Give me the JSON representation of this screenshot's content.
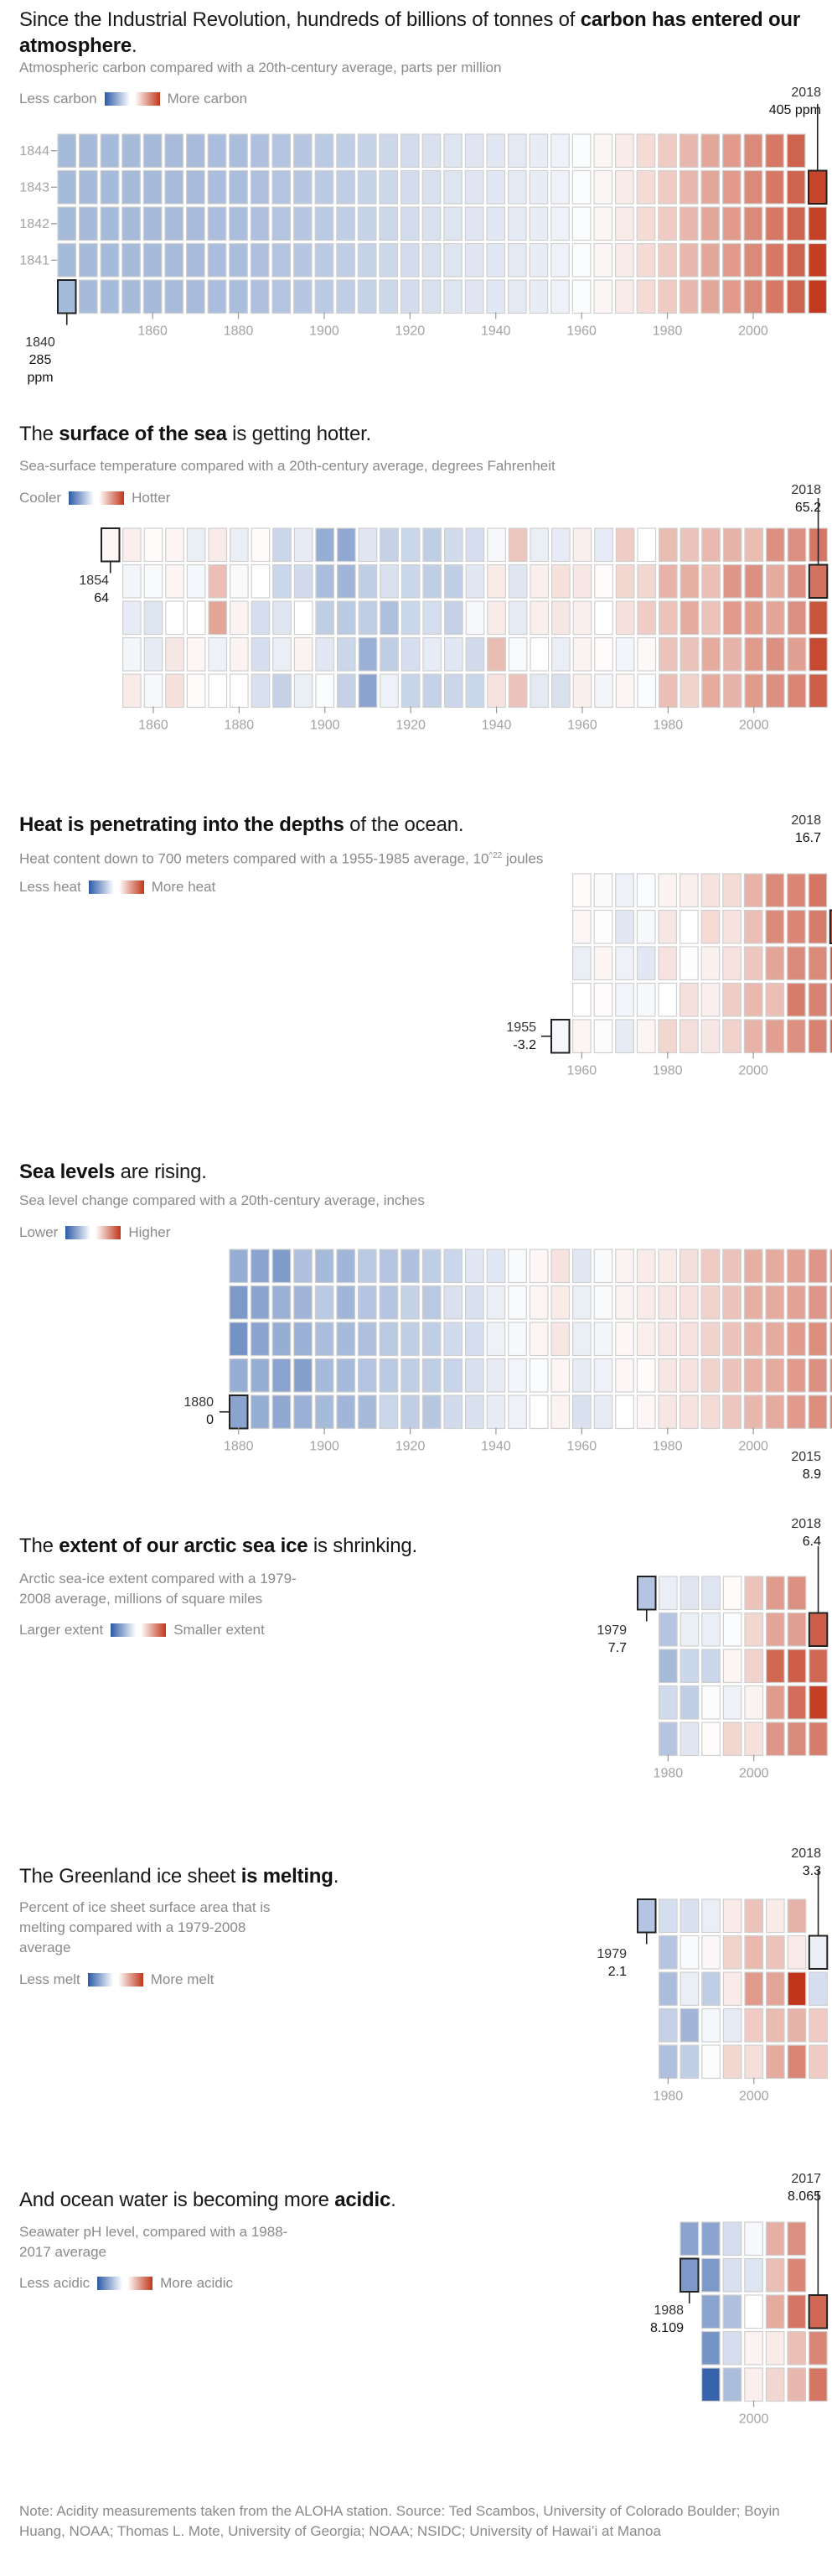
{
  "colors": {
    "cool": "#2c5aa8",
    "warm": "#c0361a",
    "neutral": "#ffffff",
    "cell_border": "#cfcfcf",
    "highlight_border": "#222222"
  },
  "sections": [
    {
      "id": "carbon",
      "title_parts": [
        {
          "text": "Since the Industrial Revolution, hundreds of billions of tonnes of ",
          "bold": false
        },
        {
          "text": "carbon has entered our atmosphere",
          "bold": true
        },
        {
          "text": ".",
          "bold": false
        }
      ],
      "subtitle": "Atmospheric carbon compared with a 20th-century average, parts per million",
      "legend": {
        "low": "Less carbon",
        "high": "More carbon"
      },
      "start_label": {
        "year": "1840",
        "value": "285 ppm"
      },
      "end_label": {
        "year": "2018",
        "value": "405 ppm"
      },
      "row_labels": [
        "1844",
        "1843",
        "1842",
        "1841"
      ]
    },
    {
      "id": "sea-surface",
      "title_parts": [
        {
          "text": "The ",
          "bold": false
        },
        {
          "text": "surface of the sea",
          "bold": true
        },
        {
          "text": " is getting hotter.",
          "bold": false
        }
      ],
      "subtitle": "Sea-surface temperature compared with a 20th-century average, degrees Fahrenheit",
      "legend": {
        "low": "Cooler",
        "high": "Hotter"
      },
      "start_label": {
        "year": "1854",
        "value": "64"
      },
      "end_label": {
        "year": "2018",
        "value": "65.2"
      }
    },
    {
      "id": "ocean-heat",
      "title_parts": [
        {
          "text": "Heat is penetrating into the depths",
          "bold": true
        },
        {
          "text": " of the ocean.",
          "bold": false
        }
      ],
      "subtitle": "Heat content down to 700 meters compared with a 1955-1985 average, 10^22 joules",
      "subtitle_main": "Heat content down to 700 meters compared with a 1955-1985 average, 10",
      "subtitle_sup": "^22",
      "subtitle_end": " joules",
      "legend": {
        "low": "Less heat",
        "high": "More heat"
      },
      "start_label": {
        "year": "1955",
        "value": "-3.2"
      },
      "end_label": {
        "year": "2018",
        "value": "16.7"
      }
    },
    {
      "id": "sea-level",
      "title_parts": [
        {
          "text": "Sea levels",
          "bold": true
        },
        {
          "text": " are rising.",
          "bold": false
        }
      ],
      "subtitle": "Sea level change compared with a 20th-century average, inches",
      "legend": {
        "low": "Lower",
        "high": "Higher"
      },
      "start_label": {
        "year": "1880",
        "value": "0"
      },
      "end_label": {
        "year": "2015",
        "value": "8.9"
      }
    },
    {
      "id": "arctic-ice",
      "title_parts": [
        {
          "text": "The ",
          "bold": false
        },
        {
          "text": "extent of our arctic sea ice",
          "bold": true
        },
        {
          "text": " is shrinking.",
          "bold": false
        }
      ],
      "subtitle_lines": [
        "Arctic sea-ice extent compared with a 1979-",
        "2008 average, millions of square miles"
      ],
      "legend": {
        "low": "Larger extent",
        "high": "Smaller extent"
      },
      "start_label": {
        "year": "1979",
        "value": "7.7"
      },
      "end_label": {
        "year": "2018",
        "value": "6.4"
      }
    },
    {
      "id": "greenland",
      "title_parts": [
        {
          "text": "The Greenland ice sheet ",
          "bold": false
        },
        {
          "text": "is melting",
          "bold": true
        },
        {
          "text": ".",
          "bold": false
        }
      ],
      "subtitle_lines": [
        "Percent of ice sheet surface area that is",
        "melting compared with a 1979-2008",
        "average"
      ],
      "legend": {
        "low": "Less melt",
        "high": "More melt"
      },
      "start_label": {
        "year": "1979",
        "value": "2.1"
      },
      "end_label": {
        "year": "2018",
        "value": "3.3"
      }
    },
    {
      "id": "acidity",
      "title_parts": [
        {
          "text": "And ocean water is becoming more ",
          "bold": false
        },
        {
          "text": "acidic",
          "bold": true
        },
        {
          "text": ".",
          "bold": false
        }
      ],
      "subtitle_lines": [
        "Seawater pH level, compared with a 1988-",
        "2017 average"
      ],
      "legend": {
        "low": "Less acidic",
        "high": "More acidic"
      },
      "start_label": {
        "year": "1988",
        "value": "8.109"
      },
      "end_label": {
        "year": "2017",
        "value": "8.065"
      }
    }
  ],
  "note": "Note: Acidity measurements taken from the ALOHA station. Source: Ted Scambos, University of Colorado Boulder; Boyin Huang, NOAA; Thomas L. Mote, University of Georgia; NOAA; NSIDC; University of Hawai’i at Manoa",
  "chart_data": [
    {
      "type": "heatmap",
      "name": "carbon",
      "title": "Since the Industrial Revolution, hundreds of billions of tonnes of carbon has entered our atmosphere.",
      "unit": "parts per million, vs 20th-century average (color scale: -1 less, +1 more)",
      "layout": "columns of 5 years, rows bottom-to-top by year within each 5-year block",
      "first_year": 1840,
      "last_year": 2018,
      "x_ticks": [
        "1860",
        "1880",
        "1900",
        "1920",
        "1940",
        "1960",
        "1980",
        "2000"
      ],
      "annotated": [
        {
          "year": 1840,
          "value": "285 ppm"
        },
        {
          "year": 2018,
          "value": "405 ppm"
        }
      ],
      "column_intensity": [
        -0.42,
        -0.42,
        -0.42,
        -0.42,
        -0.42,
        -0.41,
        -0.41,
        -0.4,
        -0.4,
        -0.38,
        -0.36,
        -0.34,
        -0.32,
        -0.3,
        -0.27,
        -0.24,
        -0.21,
        -0.18,
        -0.16,
        -0.15,
        -0.14,
        -0.13,
        -0.11,
        -0.08,
        -0.02,
        0.05,
        0.1,
        0.18,
        0.26,
        0.36,
        0.44,
        0.5,
        0.58,
        0.67,
        0.77,
        0.9
      ]
    },
    {
      "type": "heatmap",
      "name": "sea-surface",
      "title": "The surface of the sea is getting hotter.",
      "unit": "degrees Fahrenheit, vs 20th-century average (color scale -1..1)",
      "first_year": 1854,
      "last_year": 2018,
      "x_ticks": [
        "1860",
        "1880",
        "1900",
        "1920",
        "1940",
        "1960",
        "1980",
        "2000"
      ],
      "annotated": [
        {
          "year": 1854,
          "value": "64"
        },
        {
          "year": 2018,
          "value": "65.2"
        }
      ],
      "rows_top_to_bottom": [
        [
          0.04,
          0.08,
          0.02,
          0.05,
          -0.1,
          0.1,
          -0.1,
          0.02,
          -0.25,
          -0.12,
          -0.5,
          -0.52,
          -0.15,
          -0.28,
          -0.25,
          -0.3,
          -0.22,
          -0.2,
          -0.04,
          0.28,
          -0.1,
          -0.12,
          0.08,
          -0.12,
          0.25,
          0.0,
          0.33,
          0.3,
          0.35,
          0.38,
          0.33,
          0.55,
          0.55,
          0.68,
          null
        ],
        [
          null,
          -0.06,
          -0.03,
          0.05,
          -0.05,
          0.32,
          -0.03,
          0.0,
          -0.25,
          -0.22,
          -0.4,
          -0.45,
          -0.3,
          -0.18,
          -0.25,
          -0.3,
          -0.3,
          -0.14,
          0.1,
          -0.15,
          0.08,
          0.15,
          0.12,
          0.02,
          0.2,
          0.2,
          0.38,
          0.4,
          0.32,
          0.52,
          0.55,
          0.42,
          0.55,
          0.7
        ],
        [
          null,
          -0.12,
          -0.16,
          0.0,
          0.0,
          0.45,
          0.06,
          -0.2,
          -0.15,
          0.0,
          -0.3,
          -0.32,
          -0.3,
          -0.38,
          -0.25,
          -0.2,
          -0.28,
          -0.04,
          0.1,
          -0.12,
          0.08,
          0.12,
          0.08,
          0.0,
          0.15,
          0.25,
          0.3,
          0.42,
          0.3,
          0.5,
          0.5,
          0.45,
          0.55,
          0.85
        ],
        [
          null,
          -0.06,
          -0.12,
          0.12,
          0.04,
          -0.08,
          0.06,
          -0.2,
          -0.1,
          0.06,
          -0.14,
          -0.25,
          -0.48,
          -0.3,
          -0.2,
          -0.12,
          -0.14,
          -0.22,
          0.33,
          -0.03,
          0.0,
          -0.1,
          0.06,
          0.02,
          -0.06,
          0.03,
          0.3,
          0.3,
          0.42,
          0.38,
          0.5,
          0.55,
          0.48,
          0.9
        ],
        [
          null,
          0.1,
          -0.04,
          0.15,
          0.02,
          0.0,
          0.0,
          -0.18,
          -0.28,
          -0.1,
          -0.02,
          -0.28,
          -0.55,
          -0.08,
          -0.26,
          -0.28,
          -0.25,
          -0.25,
          0.14,
          0.3,
          -0.13,
          -0.18,
          0.08,
          -0.06,
          0.05,
          -0.02,
          0.32,
          0.22,
          0.42,
          0.38,
          0.5,
          0.55,
          0.6,
          0.8
        ]
      ]
    },
    {
      "type": "heatmap",
      "name": "ocean-heat",
      "title": "Heat is penetrating into the depths of the ocean.",
      "unit": "10^22 joules, vs 1955-1985 average (color scale -1..1)",
      "first_year": 1955,
      "last_year": 2018,
      "x_ticks": [
        "1960",
        "1980",
        "2000"
      ],
      "annotated": [
        {
          "year": 1955,
          "value": "-3.2"
        },
        {
          "year": 2018,
          "value": "16.7"
        }
      ],
      "rows_top_to_bottom": [
        [
          null,
          0.02,
          -0.03,
          -0.08,
          -0.02,
          0.06,
          0.08,
          0.14,
          0.18,
          0.38,
          0.58,
          0.6,
          0.68,
          null
        ],
        [
          null,
          0.04,
          0.01,
          -0.14,
          -0.04,
          0.12,
          0.0,
          0.18,
          0.14,
          0.32,
          0.58,
          0.6,
          0.65,
          0.9
        ],
        [
          null,
          -0.1,
          0.05,
          -0.08,
          -0.14,
          0.14,
          0.01,
          0.07,
          0.14,
          0.28,
          0.45,
          0.58,
          0.58,
          0.85
        ],
        [
          null,
          0.0,
          0.02,
          -0.06,
          -0.04,
          0.0,
          0.15,
          0.08,
          0.25,
          0.35,
          0.32,
          0.65,
          0.62,
          0.75
        ],
        [
          -0.04,
          0.05,
          -0.02,
          -0.12,
          0.05,
          0.2,
          0.16,
          0.12,
          0.22,
          0.38,
          0.48,
          0.55,
          0.62,
          0.8
        ]
      ]
    },
    {
      "type": "heatmap",
      "name": "sea-level",
      "title": "Sea levels are rising.",
      "unit": "inches, vs 20th-century average (color scale -1..1)",
      "first_year": 1880,
      "last_year": 2015,
      "x_ticks": [
        "1880",
        "1900",
        "1920",
        "1940",
        "1960",
        "1980",
        "2000"
      ],
      "annotated": [
        {
          "year": 1880,
          "value": "0"
        },
        {
          "year": 2015,
          "value": "8.9"
        }
      ],
      "rows_top_to_bottom": [
        [
          -0.5,
          -0.55,
          -0.6,
          -0.38,
          -0.42,
          -0.45,
          -0.32,
          -0.35,
          -0.38,
          -0.3,
          -0.25,
          -0.14,
          -0.14,
          -0.03,
          0.04,
          0.14,
          -0.14,
          -0.03,
          0.06,
          0.1,
          0.1,
          0.16,
          0.26,
          0.3,
          0.4,
          0.42,
          0.46,
          0.52,
          0.6,
          0.75,
          0.8,
          null
        ],
        [
          -0.62,
          -0.55,
          -0.48,
          -0.45,
          -0.32,
          -0.45,
          -0.35,
          -0.35,
          -0.28,
          -0.33,
          -0.18,
          -0.18,
          -0.1,
          -0.03,
          0.05,
          0.1,
          -0.1,
          -0.03,
          0.06,
          0.1,
          0.12,
          0.14,
          0.22,
          0.3,
          0.4,
          0.42,
          0.46,
          0.52,
          0.6,
          0.72,
          0.9,
          null
        ],
        [
          -0.66,
          -0.55,
          -0.5,
          -0.48,
          -0.4,
          -0.42,
          -0.38,
          -0.33,
          -0.3,
          -0.3,
          -0.22,
          -0.2,
          -0.08,
          -0.04,
          0.05,
          0.12,
          -0.1,
          -0.06,
          0.04,
          0.08,
          0.12,
          0.14,
          0.22,
          0.3,
          0.38,
          0.42,
          0.5,
          0.56,
          0.62,
          0.68,
          0.95,
          null
        ],
        [
          -0.5,
          -0.5,
          -0.55,
          -0.58,
          -0.42,
          -0.42,
          -0.36,
          -0.32,
          -0.3,
          -0.3,
          -0.26,
          -0.18,
          -0.12,
          -0.06,
          -0.02,
          0.05,
          -0.12,
          -0.08,
          0.04,
          0.02,
          0.12,
          0.14,
          0.22,
          0.3,
          0.38,
          0.42,
          0.5,
          0.55,
          0.6,
          0.7,
          0.88,
          null
        ],
        [
          -0.55,
          -0.5,
          -0.52,
          -0.48,
          -0.42,
          -0.45,
          -0.42,
          -0.25,
          -0.3,
          -0.34,
          -0.22,
          -0.18,
          -0.12,
          -0.08,
          0.0,
          0.06,
          -0.18,
          -0.12,
          0.0,
          0.04,
          0.12,
          0.14,
          0.18,
          0.28,
          0.36,
          0.42,
          0.5,
          0.56,
          0.62,
          0.72,
          0.85,
          0.82
        ]
      ]
    },
    {
      "type": "heatmap",
      "name": "arctic-ice",
      "title": "The extent of our arctic sea ice is shrinking.",
      "unit": "millions of square miles, vs 1979-2008 average (color scale -1 larger .. +1 smaller)",
      "first_year": 1979,
      "last_year": 2018,
      "x_ticks": [
        "1980",
        "2000"
      ],
      "annotated": [
        {
          "year": 1979,
          "value": "7.7"
        },
        {
          "year": 2018,
          "value": "6.4"
        }
      ],
      "rows_top_to_bottom": [
        [
          -0.35,
          -0.1,
          -0.15,
          -0.15,
          0.02,
          0.3,
          0.5,
          0.55,
          null
        ],
        [
          null,
          -0.35,
          -0.1,
          -0.1,
          -0.02,
          0.2,
          0.45,
          0.48,
          0.8
        ],
        [
          null,
          -0.42,
          -0.25,
          -0.25,
          0.05,
          0.22,
          0.75,
          0.8,
          0.75
        ],
        [
          null,
          -0.22,
          -0.3,
          -0.02,
          -0.08,
          0.06,
          0.5,
          0.72,
          0.95
        ],
        [
          null,
          -0.35,
          -0.15,
          0.02,
          0.2,
          0.15,
          0.52,
          0.58,
          0.65
        ]
      ]
    },
    {
      "type": "heatmap",
      "name": "greenland",
      "title": "The Greenland ice sheet is melting.",
      "unit": "percent of ice sheet surface melting, vs 1979-2008 average (color scale -1..1)",
      "first_year": 1979,
      "last_year": 2018,
      "x_ticks": [
        "1980",
        "2000"
      ],
      "annotated": [
        {
          "year": 1979,
          "value": "2.1"
        },
        {
          "year": 2018,
          "value": "3.3"
        }
      ],
      "rows_top_to_bottom": [
        [
          -0.35,
          -0.2,
          -0.18,
          -0.1,
          0.1,
          0.3,
          0.1,
          0.38,
          null
        ],
        [
          null,
          -0.35,
          -0.03,
          0.04,
          0.22,
          0.35,
          0.3,
          0.1,
          -0.1
        ],
        [
          null,
          -0.4,
          -0.1,
          -0.3,
          0.1,
          0.5,
          0.45,
          1.0,
          -0.2
        ],
        [
          null,
          -0.28,
          -0.45,
          -0.05,
          -0.12,
          0.26,
          0.34,
          0.38,
          0.26
        ],
        [
          null,
          -0.38,
          -0.3,
          -0.02,
          0.2,
          0.16,
          0.42,
          0.6,
          0.26
        ]
      ]
    },
    {
      "type": "heatmap",
      "name": "acidity",
      "title": "And ocean water is becoming more acidic.",
      "unit": "seawater pH, vs 1988-2017 average (color scale -1 less acidic .. +1 more acidic)",
      "first_year": 1988,
      "last_year": 2017,
      "x_ticks": [
        "2000"
      ],
      "annotated": [
        {
          "year": 1988,
          "value": "8.109"
        },
        {
          "year": 2017,
          "value": "8.065"
        }
      ],
      "rows_top_to_bottom": [
        [
          -0.55,
          -0.55,
          -0.2,
          -0.04,
          0.4,
          0.55,
          null
        ],
        [
          -0.62,
          -0.62,
          -0.18,
          -0.16,
          0.32,
          0.6,
          null
        ],
        [
          null,
          -0.55,
          -0.38,
          0.0,
          0.42,
          0.68,
          0.75
        ],
        [
          null,
          -0.65,
          -0.2,
          0.06,
          0.1,
          0.32,
          0.6
        ],
        [
          null,
          -0.95,
          -0.4,
          0.08,
          0.2,
          0.36,
          0.68
        ]
      ]
    }
  ]
}
